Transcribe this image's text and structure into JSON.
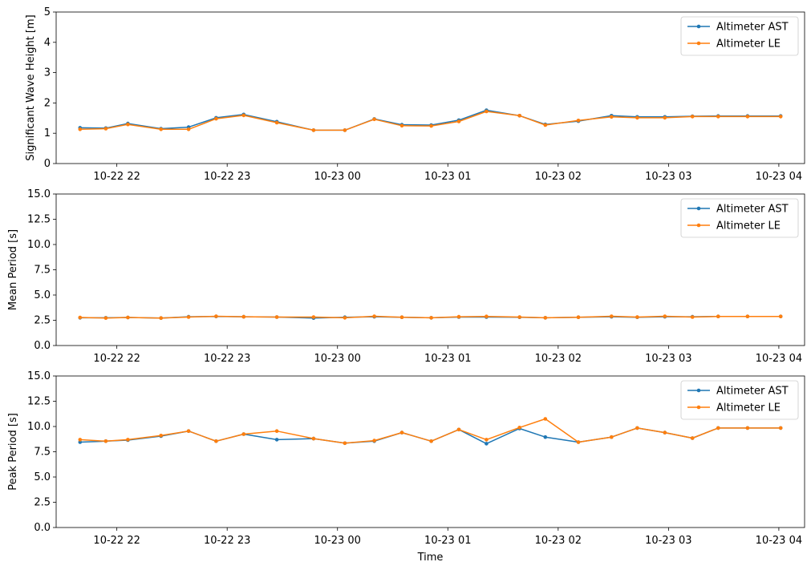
{
  "colors": {
    "ast": "#1f77b4",
    "le": "#ff7f0e"
  },
  "chart_data": [
    {
      "type": "line",
      "ylabel": "Significant Wave Height [m]",
      "xlabel": "",
      "ylim": [
        0,
        5
      ],
      "yticks": [
        "0",
        "1",
        "2",
        "3",
        "4",
        "5"
      ],
      "xlim": [
        "2024-10-22 21:27",
        "2024-10-23 04:14"
      ],
      "xticks": [
        "10-22 22",
        "10-22 23",
        "10-23 00",
        "10-23 01",
        "10-23 02",
        "10-23 03",
        "10-23 04"
      ],
      "x": [
        "21:40",
        "21:54",
        "22:06",
        "22:24",
        "22:39",
        "22:54",
        "23:09",
        "23:27",
        "23:47",
        "24:04",
        "24:20",
        "24:35",
        "24:51",
        "25:06",
        "25:21",
        "25:39",
        "25:53",
        "26:11",
        "26:29",
        "26:43",
        "26:58",
        "27:13",
        "27:27",
        "27:43",
        "28:01"
      ],
      "series": [
        {
          "name": "Altimeter AST",
          "values": [
            1.18,
            1.17,
            1.32,
            1.15,
            1.2,
            1.51,
            1.62,
            1.38,
            1.1,
            1.1,
            1.47,
            1.28,
            1.27,
            1.43,
            1.76,
            1.58,
            1.29,
            1.4,
            1.58,
            1.54,
            1.54,
            1.56,
            1.57,
            1.57,
            1.57
          ]
        },
        {
          "name": "Altimeter LE",
          "values": [
            1.13,
            1.15,
            1.29,
            1.13,
            1.13,
            1.48,
            1.59,
            1.35,
            1.1,
            1.1,
            1.46,
            1.25,
            1.24,
            1.39,
            1.72,
            1.58,
            1.27,
            1.42,
            1.54,
            1.51,
            1.51,
            1.55,
            1.55,
            1.55,
            1.55
          ]
        }
      ],
      "legend": "upper right"
    },
    {
      "type": "line",
      "ylabel": "Mean Period [s]",
      "xlabel": "",
      "ylim": [
        0,
        15
      ],
      "yticks": [
        "0.0",
        "2.5",
        "5.0",
        "7.5",
        "10.0",
        "12.5",
        "15.0"
      ],
      "xlim": [
        "2024-10-22 21:27",
        "2024-10-23 04:14"
      ],
      "xticks": [
        "10-22 22",
        "10-22 23",
        "10-23 00",
        "10-23 01",
        "10-23 02",
        "10-23 03",
        "10-23 04"
      ],
      "x": [
        "21:40",
        "21:54",
        "22:06",
        "22:24",
        "22:39",
        "22:54",
        "23:09",
        "23:27",
        "23:47",
        "24:04",
        "24:20",
        "24:35",
        "24:51",
        "25:06",
        "25:21",
        "25:39",
        "25:53",
        "26:11",
        "26:29",
        "26:43",
        "26:58",
        "27:13",
        "27:27",
        "27:43",
        "28:01"
      ],
      "series": [
        {
          "name": "Altimeter AST",
          "values": [
            2.75,
            2.75,
            2.78,
            2.72,
            2.85,
            2.88,
            2.85,
            2.82,
            2.72,
            2.8,
            2.85,
            2.8,
            2.75,
            2.82,
            2.82,
            2.8,
            2.75,
            2.8,
            2.85,
            2.8,
            2.85,
            2.85,
            2.88,
            2.88,
            2.88
          ]
        },
        {
          "name": "Altimeter LE",
          "values": [
            2.78,
            2.72,
            2.78,
            2.72,
            2.82,
            2.9,
            2.85,
            2.82,
            2.82,
            2.75,
            2.9,
            2.8,
            2.75,
            2.85,
            2.88,
            2.82,
            2.75,
            2.8,
            2.9,
            2.82,
            2.9,
            2.82,
            2.88,
            2.88,
            2.88
          ]
        }
      ],
      "legend": "upper right"
    },
    {
      "type": "line",
      "ylabel": "Peak Period [s]",
      "xlabel": "Time",
      "ylim": [
        0,
        15
      ],
      "yticks": [
        "0.0",
        "2.5",
        "5.0",
        "7.5",
        "10.0",
        "12.5",
        "15.0"
      ],
      "xlim": [
        "2024-10-22 21:27",
        "2024-10-23 04:14"
      ],
      "xticks": [
        "10-22 22",
        "10-22 23",
        "10-23 00",
        "10-23 01",
        "10-23 02",
        "10-23 03",
        "10-23 04"
      ],
      "x": [
        "21:40",
        "21:54",
        "22:06",
        "22:24",
        "22:39",
        "22:54",
        "23:09",
        "23:27",
        "23:47",
        "24:04",
        "24:20",
        "24:35",
        "24:51",
        "25:06",
        "25:21",
        "25:39",
        "25:53",
        "26:11",
        "26:29",
        "26:43",
        "26:58",
        "27:13",
        "27:27",
        "27:43",
        "28:01"
      ],
      "series": [
        {
          "name": "Altimeter AST",
          "values": [
            8.45,
            8.55,
            8.65,
            9.05,
            9.55,
            8.55,
            9.25,
            8.7,
            8.8,
            8.35,
            8.55,
            9.4,
            8.55,
            9.7,
            8.3,
            9.8,
            8.95,
            8.45,
            8.95,
            9.85,
            9.4,
            8.85,
            9.85,
            9.85,
            9.85
          ]
        },
        {
          "name": "Altimeter LE",
          "values": [
            8.7,
            8.55,
            8.7,
            9.1,
            9.55,
            8.55,
            9.25,
            9.55,
            8.8,
            8.35,
            8.6,
            9.4,
            8.55,
            9.7,
            8.7,
            9.9,
            10.75,
            8.45,
            8.95,
            9.85,
            9.4,
            8.85,
            9.85,
            9.85,
            9.85
          ]
        }
      ],
      "legend": "upper right"
    }
  ]
}
